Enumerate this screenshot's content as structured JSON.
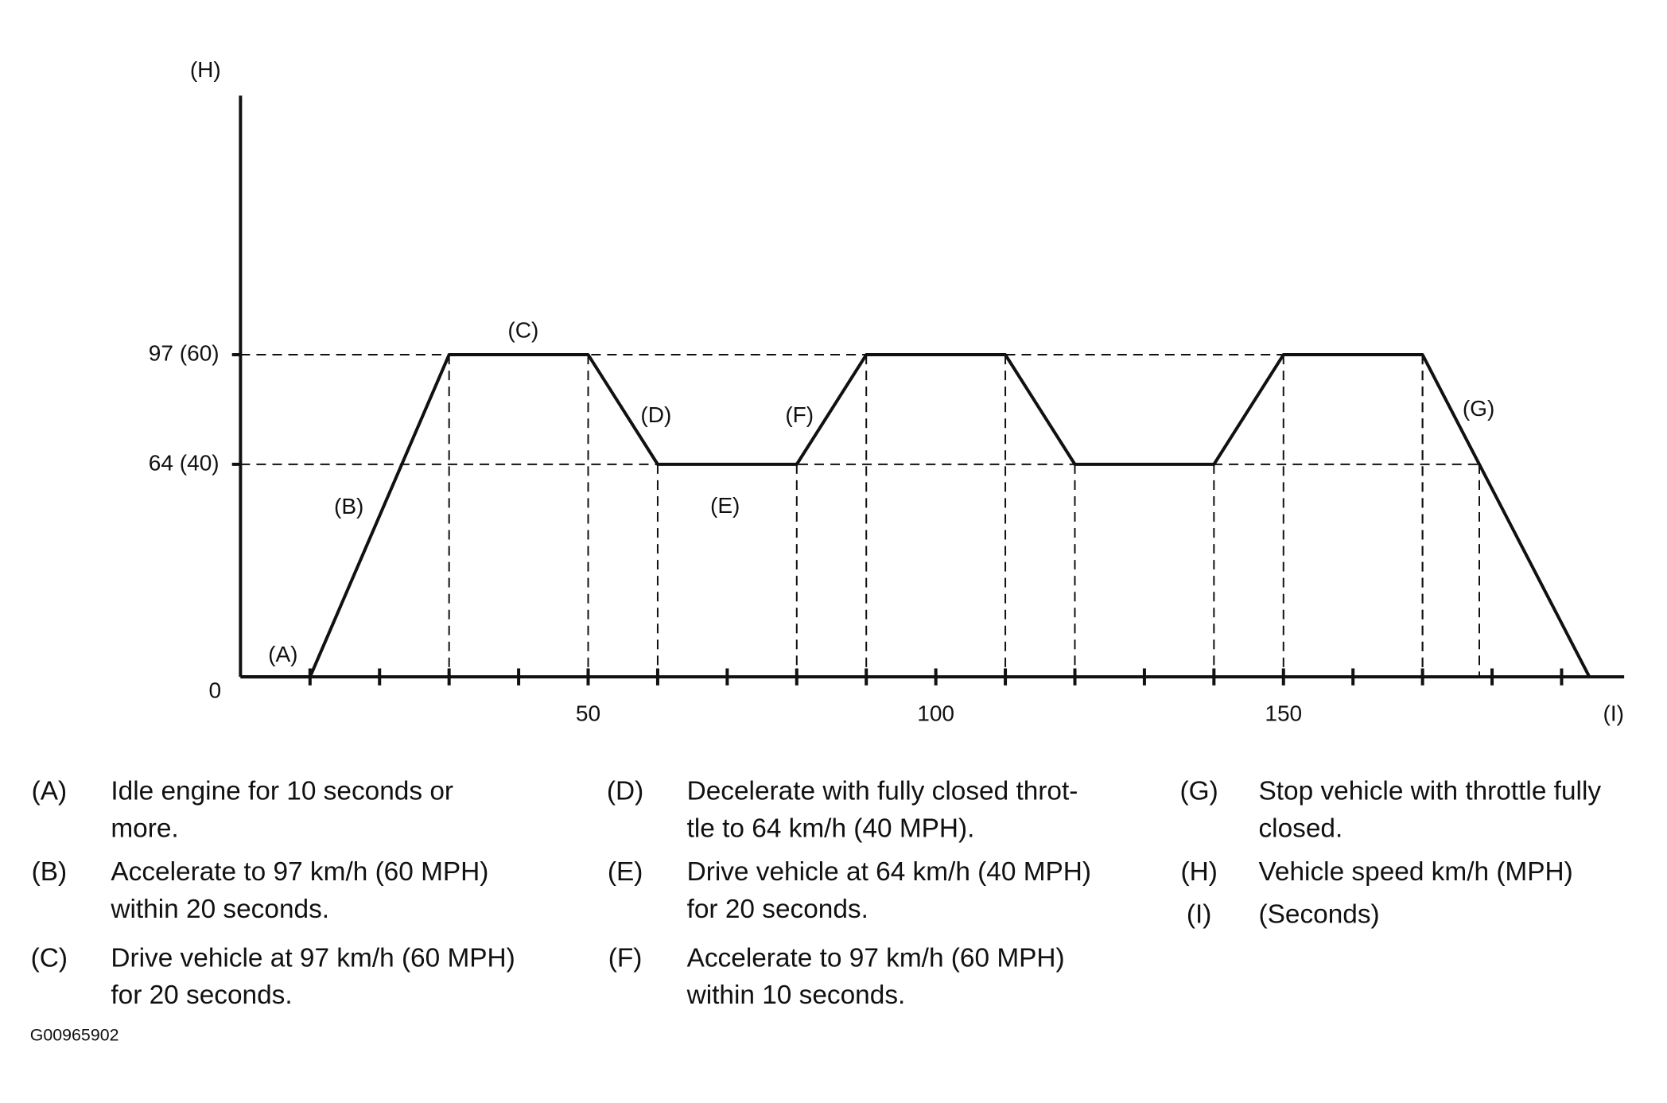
{
  "chart_data": {
    "type": "line",
    "x": [
      0,
      10,
      30,
      50,
      60,
      80,
      90,
      110,
      120,
      140,
      150,
      170,
      194
    ],
    "series": [
      {
        "values": [
          0,
          0,
          97,
          97,
          64,
          64,
          97,
          97,
          64,
          64,
          97,
          97,
          0
        ],
        "color": "#111111"
      }
    ],
    "xlim": [
      0,
      199
    ],
    "ylim": [
      0,
      175
    ],
    "xticks": [
      {
        "value": 10,
        "label": null
      },
      {
        "value": 20,
        "label": null
      },
      {
        "value": 30,
        "label": null
      },
      {
        "value": 40,
        "label": null
      },
      50,
      {
        "value": 60,
        "label": null
      },
      {
        "value": 70,
        "label": null
      },
      {
        "value": 80,
        "label": null
      },
      {
        "value": 90,
        "label": null
      },
      100,
      {
        "value": 110,
        "label": null
      },
      {
        "value": 120,
        "label": null
      },
      {
        "value": 130,
        "label": null
      },
      {
        "value": 140,
        "label": null
      },
      150,
      {
        "value": 160,
        "label": null
      },
      {
        "value": 170,
        "label": null
      },
      {
        "value": 180,
        "label": null
      },
      {
        "value": 190,
        "label": null
      }
    ],
    "yticks": [
      0,
      {
        "value": 64,
        "label": "64 (40)"
      },
      {
        "value": 97,
        "label": "97 (60)"
      }
    ],
    "y_label": "(H)",
    "x_label": "(I)",
    "annotations": [
      "(A)",
      "(B)",
      "(C)",
      "(D)",
      "(E)",
      "(F)",
      "(G)"
    ]
  },
  "notes": [
    {
      "key": "(A)",
      "lines": [
        "Idle engine for 10 seconds or",
        "more."
      ]
    },
    {
      "key": "(B)",
      "lines": [
        "Accelerate to 97 km/h (60 MPH)",
        "within 20 seconds."
      ]
    },
    {
      "key": "(C)",
      "lines": [
        "Drive vehicle at 97 km/h (60 MPH)",
        "for 20 seconds."
      ]
    },
    {
      "key": "(D)",
      "lines": [
        "Decelerate with fully closed throt-",
        "tle to 64 km/h (40 MPH)."
      ]
    },
    {
      "key": "(E)",
      "lines": [
        "Drive vehicle at 64 km/h (40 MPH)",
        "for 20 seconds."
      ]
    },
    {
      "key": "(F)",
      "lines": [
        "Accelerate to 97 km/h (60 MPH)",
        "within 10 seconds."
      ]
    },
    {
      "key": "(G)",
      "lines": [
        "Stop vehicle with throttle fully",
        "closed."
      ]
    },
    {
      "key": "(H)",
      "lines": [
        "Vehicle speed km/h (MPH)"
      ]
    },
    {
      "key": "(I)",
      "lines": [
        "(Seconds)"
      ]
    }
  ],
  "figure_id": "G00965902"
}
